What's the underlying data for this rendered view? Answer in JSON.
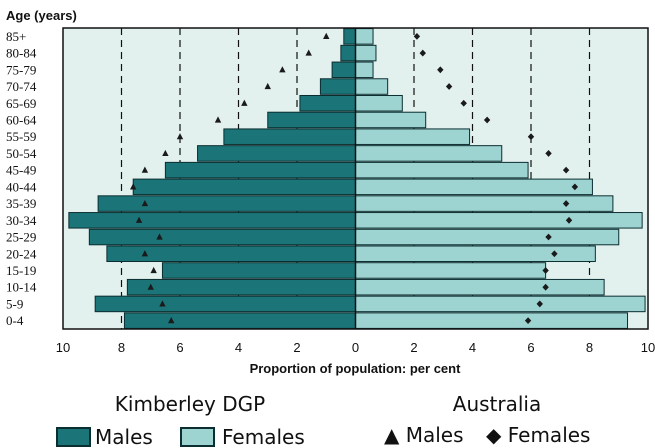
{
  "chart_data": {
    "type": "bar",
    "subtype": "population-pyramid",
    "ylabel": "Age (years)",
    "xlabel": "Proportion of population: per cent",
    "xlim": [
      -10,
      10
    ],
    "x_ticks": [
      -10,
      -8,
      -6,
      -4,
      -2,
      0,
      2,
      4,
      6,
      8,
      10
    ],
    "x_tick_labels": [
      "10",
      "8",
      "6",
      "4",
      "2",
      "0",
      "2",
      "4",
      "6",
      "8",
      "10"
    ],
    "gridlines": "dashed vertical at 2,4,6,8 per cent each side",
    "categories": [
      "0-4",
      "5-9",
      "10-14",
      "15-19",
      "20-24",
      "25-29",
      "30-34",
      "35-39",
      "40-44",
      "45-49",
      "50-54",
      "55-59",
      "60-64",
      "65-69",
      "70-74",
      "75-79",
      "80-84",
      "85+"
    ],
    "series": [
      {
        "name": "Males",
        "group": "Kimberley DGP",
        "marker": "bar",
        "color": "#1a7478",
        "values": [
          7.9,
          8.9,
          7.8,
          6.6,
          8.5,
          9.1,
          9.8,
          8.8,
          7.6,
          6.5,
          5.4,
          4.5,
          3.0,
          1.9,
          1.2,
          0.8,
          0.5,
          0.4
        ]
      },
      {
        "name": "Females",
        "group": "Kimberley DGP",
        "marker": "bar",
        "color": "#9dd3d1",
        "values": [
          9.3,
          9.9,
          8.5,
          6.5,
          8.2,
          9.0,
          9.8,
          8.8,
          8.1,
          5.9,
          5.0,
          3.9,
          2.4,
          1.6,
          1.1,
          0.6,
          0.7,
          0.6
        ]
      },
      {
        "name": "Males",
        "group": "Australia",
        "marker": "triangle",
        "values": [
          6.3,
          6.6,
          7.0,
          6.9,
          7.2,
          6.7,
          7.4,
          7.2,
          7.6,
          7.2,
          6.5,
          6.0,
          4.7,
          3.8,
          3.0,
          2.5,
          1.6,
          1.0
        ]
      },
      {
        "name": "Females",
        "group": "Australia",
        "marker": "diamond",
        "values": [
          5.9,
          6.3,
          6.5,
          6.5,
          6.8,
          6.6,
          7.3,
          7.2,
          7.5,
          7.2,
          6.6,
          6.0,
          4.5,
          3.7,
          3.2,
          2.9,
          2.3,
          2.1
        ]
      }
    ]
  },
  "legend": {
    "group1_title": "Kimberley DGP",
    "group1_item1": "Males",
    "group1_item2": "Females",
    "group2_title": "Australia",
    "group2_item1": "▲ Males",
    "group2_item2": "◆ Females"
  },
  "colors": {
    "plot_background": "#e3f1ee",
    "male_bar": "#1a7478",
    "female_bar": "#9dd3d1",
    "bar_outline": "#0b2e30",
    "marker": "#1a1a1a"
  }
}
